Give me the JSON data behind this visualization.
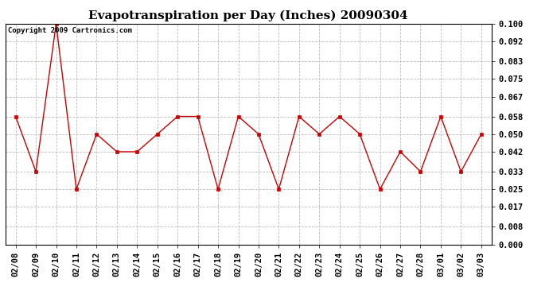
{
  "title": "Evapotranspiration per Day (Inches) 20090304",
  "copyright_text": "Copyright 2009 Cartronics.com",
  "x_labels": [
    "02/08",
    "02/09",
    "02/10",
    "02/11",
    "02/12",
    "02/13",
    "02/14",
    "02/15",
    "02/16",
    "02/17",
    "02/18",
    "02/19",
    "02/20",
    "02/21",
    "02/22",
    "02/23",
    "02/24",
    "02/25",
    "02/26",
    "02/27",
    "02/28",
    "03/01",
    "03/02",
    "03/03"
  ],
  "y_values": [
    0.058,
    0.033,
    0.1,
    0.025,
    0.05,
    0.042,
    0.042,
    0.05,
    0.058,
    0.058,
    0.025,
    0.058,
    0.05,
    0.025,
    0.058,
    0.05,
    0.058,
    0.05,
    0.025,
    0.042,
    0.033,
    0.058,
    0.033,
    0.05
  ],
  "y_ticks": [
    0.0,
    0.008,
    0.017,
    0.025,
    0.033,
    0.042,
    0.05,
    0.058,
    0.067,
    0.075,
    0.083,
    0.092,
    0.1
  ],
  "line_color": "#cc0000",
  "marker": "s",
  "marker_size": 2.5,
  "background_color": "#ffffff",
  "grid_color": "#bbbbbb",
  "ylim": [
    0.0,
    0.1
  ],
  "title_fontsize": 11,
  "tick_fontsize": 7.5,
  "copyright_fontsize": 6.5
}
